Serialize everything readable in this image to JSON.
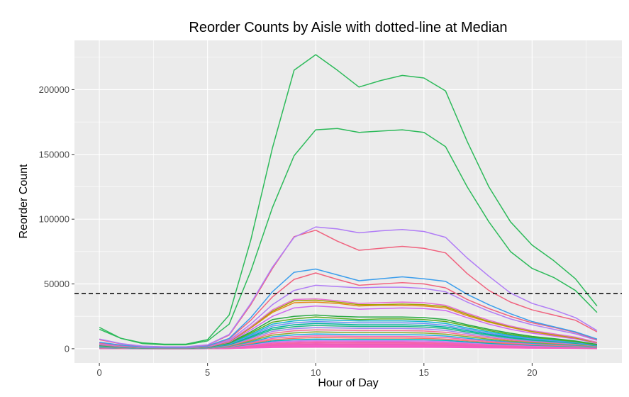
{
  "chart_data": {
    "type": "line",
    "title": "Reorder Counts by Aisle with dotted-line at Median",
    "xlabel": "Hour of Day",
    "ylabel": "Reorder Count",
    "xlim": [
      -1.15,
      24.15
    ],
    "ylim": [
      -11000,
      238000
    ],
    "x_ticks": [
      0,
      5,
      10,
      15,
      20
    ],
    "x_tick_labels": [
      "0",
      "5",
      "10",
      "15",
      "20"
    ],
    "y_ticks": [
      0,
      50000,
      100000,
      150000,
      200000
    ],
    "y_tick_labels": [
      "0",
      "50000",
      "100000",
      "150000",
      "200000"
    ],
    "grid": true,
    "panel_background": "#ebebeb",
    "grid_color": "#ffffff",
    "median_line": {
      "y": 42500,
      "style": "dashed",
      "color": "#000000"
    },
    "x": [
      0,
      1,
      2,
      3,
      4,
      5,
      6,
      7,
      8,
      9,
      10,
      11,
      12,
      13,
      14,
      15,
      16,
      17,
      18,
      19,
      20,
      21,
      22,
      23
    ],
    "series": [
      {
        "color": "#2dba5a",
        "values": [
          16500,
          8000,
          4500,
          3500,
          3500,
          7000,
          26000,
          84000,
          155000,
          215000,
          227000,
          215000,
          202000,
          207000,
          211000,
          209000,
          199000,
          160000,
          125000,
          98000,
          80000,
          68000,
          54000,
          33000
        ]
      },
      {
        "color": "#2dba5a",
        "values": [
          15000,
          8000,
          4000,
          3000,
          3000,
          6000,
          19000,
          60000,
          109000,
          149000,
          169000,
          170000,
          167000,
          168000,
          169000,
          167000,
          156000,
          125000,
          98000,
          75000,
          62000,
          55000,
          45000,
          28000
        ]
      },
      {
        "color": "#b07cf6",
        "values": [
          7500,
          4000,
          2000,
          1500,
          1500,
          3000,
          11000,
          35000,
          63000,
          86000,
          94000,
          92500,
          89500,
          91000,
          92000,
          90500,
          86000,
          70000,
          56000,
          43000,
          35000,
          30000,
          24000,
          14000
        ]
      },
      {
        "color": "#f0627e",
        "values": [
          7000,
          3800,
          1900,
          1400,
          1400,
          2800,
          10500,
          34000,
          62000,
          86500,
          91500,
          83000,
          76000,
          77500,
          79000,
          77500,
          74000,
          58000,
          45000,
          36000,
          30000,
          26000,
          22000,
          13000
        ]
      },
      {
        "color": "#3a9dec",
        "values": [
          5000,
          2800,
          1400,
          1000,
          1000,
          2200,
          8000,
          24000,
          44000,
          59000,
          61500,
          57000,
          52500,
          54000,
          55500,
          54000,
          52000,
          42000,
          34000,
          27000,
          21000,
          17000,
          13000,
          7500
        ]
      },
      {
        "color": "#f0627e",
        "values": [
          4500,
          2500,
          1300,
          900,
          900,
          2000,
          7500,
          22000,
          40000,
          53500,
          58500,
          53500,
          49000,
          50000,
          51000,
          50000,
          47000,
          38000,
          31000,
          25000,
          20000,
          16500,
          12500,
          7000
        ]
      },
      {
        "color": "#b07cf6",
        "values": [
          4000,
          2200,
          1100,
          800,
          800,
          1800,
          6500,
          19000,
          34000,
          45000,
          49000,
          48000,
          47000,
          47500,
          47500,
          46500,
          44000,
          36000,
          29000,
          23000,
          18500,
          15000,
          11500,
          6500
        ]
      },
      {
        "color": "#e56fd0",
        "values": [
          3500,
          1900,
          950,
          700,
          700,
          1600,
          5800,
          17000,
          30000,
          38000,
          38500,
          37000,
          35000,
          35500,
          36000,
          35500,
          33500,
          27500,
          22000,
          17500,
          14000,
          11500,
          9000,
          5000
        ]
      },
      {
        "color": "#a3a500",
        "values": [
          3400,
          1850,
          920,
          680,
          680,
          1550,
          5600,
          16500,
          29000,
          37000,
          37500,
          36000,
          34000,
          34000,
          34500,
          34000,
          32500,
          26500,
          21000,
          17000,
          13500,
          11000,
          8500,
          4800
        ]
      },
      {
        "color": "#e7861b",
        "values": [
          3300,
          1800,
          900,
          650,
          650,
          1500,
          5400,
          16000,
          28000,
          35500,
          36000,
          35000,
          33000,
          33500,
          33500,
          33000,
          31500,
          25500,
          20500,
          16500,
          13000,
          10500,
          8200,
          4600
        ]
      },
      {
        "color": "#cd66f0",
        "values": [
          3000,
          1600,
          820,
          600,
          600,
          1350,
          5000,
          14500,
          25000,
          31500,
          33000,
          32000,
          30500,
          31000,
          31500,
          31000,
          29500,
          24000,
          19000,
          15000,
          12000,
          9800,
          7600,
          4200
        ]
      },
      {
        "color": "#29a843",
        "values": [
          2700,
          1500,
          750,
          550,
          550,
          1250,
          4500,
          13000,
          22500,
          25000,
          26000,
          25000,
          24500,
          24500,
          24500,
          24000,
          22500,
          18500,
          15000,
          12000,
          9500,
          7800,
          6000,
          3400
        ]
      },
      {
        "color": "#57b020",
        "values": [
          2500,
          1400,
          700,
          500,
          500,
          1150,
          4200,
          12000,
          20500,
          23000,
          24500,
          23500,
          22500,
          23000,
          23000,
          22500,
          21000,
          17500,
          14000,
          11000,
          8800,
          7200,
          5500,
          3100
        ]
      },
      {
        "color": "#13b7d4",
        "values": [
          2300,
          1300,
          650,
          470,
          470,
          1050,
          3900,
          11000,
          19000,
          21500,
          22500,
          22000,
          21500,
          21500,
          21500,
          21000,
          19500,
          16000,
          13000,
          10300,
          8200,
          6700,
          5200,
          2900
        ]
      },
      {
        "color": "#6b8ff7",
        "values": [
          2100,
          1200,
          600,
          430,
          430,
          980,
          3600,
          10200,
          17500,
          20000,
          21000,
          20500,
          20000,
          20000,
          20000,
          19500,
          18000,
          15000,
          12000,
          9600,
          7600,
          6200,
          4800,
          2700
        ]
      },
      {
        "color": "#00b3a0",
        "values": [
          1900,
          1100,
          550,
          400,
          400,
          900,
          3300,
          9400,
          16000,
          18500,
          19500,
          19000,
          18500,
          18500,
          18500,
          18000,
          16800,
          13900,
          11200,
          8900,
          7100,
          5800,
          4500,
          2500
        ]
      },
      {
        "color": "#1fb987",
        "values": [
          1700,
          1000,
          500,
          370,
          370,
          830,
          3000,
          8600,
          14800,
          17000,
          18000,
          17500,
          17200,
          17200,
          17200,
          16800,
          15600,
          12900,
          10400,
          8300,
          6600,
          5400,
          4200,
          2300
        ]
      },
      {
        "color": "#9f86f2",
        "values": [
          1500,
          880,
          450,
          330,
          330,
          740,
          2700,
          7800,
          13400,
          15500,
          16300,
          16000,
          15700,
          15700,
          15700,
          15300,
          14200,
          11700,
          9400,
          7500,
          6000,
          4900,
          3800,
          2100
        ]
      },
      {
        "color": "#fb6c93",
        "values": [
          1300,
          770,
          400,
          290,
          290,
          650,
          2400,
          6900,
          11900,
          13800,
          14600,
          14300,
          14000,
          14000,
          14000,
          13700,
          12700,
          10500,
          8400,
          6700,
          5400,
          4400,
          3400,
          1900
        ]
      },
      {
        "color": "#8dab2c",
        "values": [
          1150,
          680,
          350,
          260,
          260,
          580,
          2100,
          6100,
          10500,
          12200,
          13000,
          12700,
          12400,
          12400,
          12400,
          12100,
          11200,
          9300,
          7400,
          5900,
          4800,
          3900,
          3000,
          1700
        ]
      },
      {
        "color": "#21aee0",
        "values": [
          1000,
          590,
          310,
          230,
          230,
          510,
          1850,
          5300,
          9200,
          10700,
          11400,
          11100,
          10900,
          10900,
          10900,
          10600,
          9800,
          8100,
          6500,
          5200,
          4200,
          3400,
          2600,
          1500
        ]
      },
      {
        "color": "#f966b6",
        "values": [
          880,
          520,
          270,
          200,
          200,
          450,
          1620,
          4600,
          8000,
          9300,
          9900,
          9700,
          9500,
          9500,
          9500,
          9200,
          8600,
          7100,
          5700,
          4500,
          3600,
          3000,
          2300,
          1300
        ]
      },
      {
        "color": "#f37a5e",
        "values": [
          770,
          450,
          235,
          175,
          175,
          390,
          1400,
          4000,
          6900,
          8000,
          8600,
          8400,
          8200,
          8200,
          8200,
          8000,
          7400,
          6100,
          4900,
          3900,
          3100,
          2600,
          2000,
          1150
        ]
      },
      {
        "color": "#00b7bd",
        "values": [
          670,
          390,
          205,
          150,
          150,
          340,
          1220,
          3500,
          6000,
          6900,
          7400,
          7200,
          7100,
          7100,
          7100,
          6900,
          6400,
          5300,
          4200,
          3400,
          2700,
          2200,
          1700,
          1000
        ]
      },
      {
        "color": "#c97ef2",
        "values": [
          580,
          340,
          175,
          130,
          130,
          295,
          1060,
          3000,
          5200,
          6000,
          6400,
          6200,
          6100,
          6100,
          6100,
          6000,
          5500,
          4600,
          3700,
          2900,
          2300,
          1900,
          1500,
          860
        ]
      },
      {
        "color": "#f062c2",
        "values": [
          500,
          290,
          150,
          110,
          110,
          255,
          910,
          2600,
          4500,
          5200,
          5500,
          5400,
          5300,
          5300,
          5300,
          5100,
          4700,
          3900,
          3100,
          2500,
          2000,
          1650,
          1280,
          740
        ]
      },
      {
        "color": "#f766a2",
        "values": [
          420,
          245,
          128,
          95,
          95,
          215,
          780,
          2200,
          3800,
          4400,
          4700,
          4600,
          4500,
          4500,
          4500,
          4400,
          4000,
          3300,
          2700,
          2100,
          1700,
          1400,
          1100,
          630
        ]
      },
      {
        "color": "#f25fbd",
        "values": [
          350,
          205,
          107,
          80,
          80,
          180,
          650,
          1850,
          3200,
          3700,
          3900,
          3800,
          3750,
          3750,
          3750,
          3650,
          3350,
          2800,
          2250,
          1800,
          1420,
          1170,
          910,
          520
        ]
      },
      {
        "color": "#ee5fb0",
        "values": [
          290,
          170,
          88,
          65,
          65,
          150,
          540,
          1530,
          2650,
          3050,
          3250,
          3150,
          3100,
          3100,
          3100,
          3000,
          2780,
          2300,
          1850,
          1480,
          1180,
          970,
          750,
          430
        ]
      },
      {
        "color": "#f25fca",
        "values": [
          240,
          140,
          73,
          54,
          54,
          124,
          445,
          1270,
          2200,
          2530,
          2690,
          2620,
          2570,
          2570,
          2570,
          2500,
          2300,
          1900,
          1530,
          1230,
          980,
          800,
          620,
          360
        ]
      },
      {
        "color": "#f55cc0",
        "values": [
          200,
          115,
          60,
          45,
          45,
          103,
          370,
          1050,
          1820,
          2100,
          2230,
          2170,
          2130,
          2130,
          2130,
          2070,
          1910,
          1580,
          1270,
          1020,
          810,
          660,
          515,
          300
        ]
      },
      {
        "color": "#f45bc4",
        "values": [
          160,
          95,
          49,
          37,
          37,
          85,
          305,
          870,
          1500,
          1740,
          1850,
          1800,
          1760,
          1760,
          1760,
          1710,
          1580,
          1310,
          1050,
          840,
          670,
          550,
          425,
          245
        ]
      },
      {
        "color": "#f55ac8",
        "values": [
          130,
          76,
          40,
          30,
          30,
          69,
          250,
          710,
          1230,
          1420,
          1510,
          1470,
          1440,
          1440,
          1440,
          1400,
          1290,
          1070,
          860,
          690,
          550,
          450,
          350,
          200
        ]
      },
      {
        "color": "#f65ac6",
        "values": [
          100,
          60,
          31,
          23,
          23,
          54,
          195,
          555,
          960,
          1110,
          1180,
          1150,
          1130,
          1130,
          1130,
          1100,
          1010,
          840,
          670,
          540,
          430,
          350,
          270,
          155
        ]
      }
    ]
  }
}
